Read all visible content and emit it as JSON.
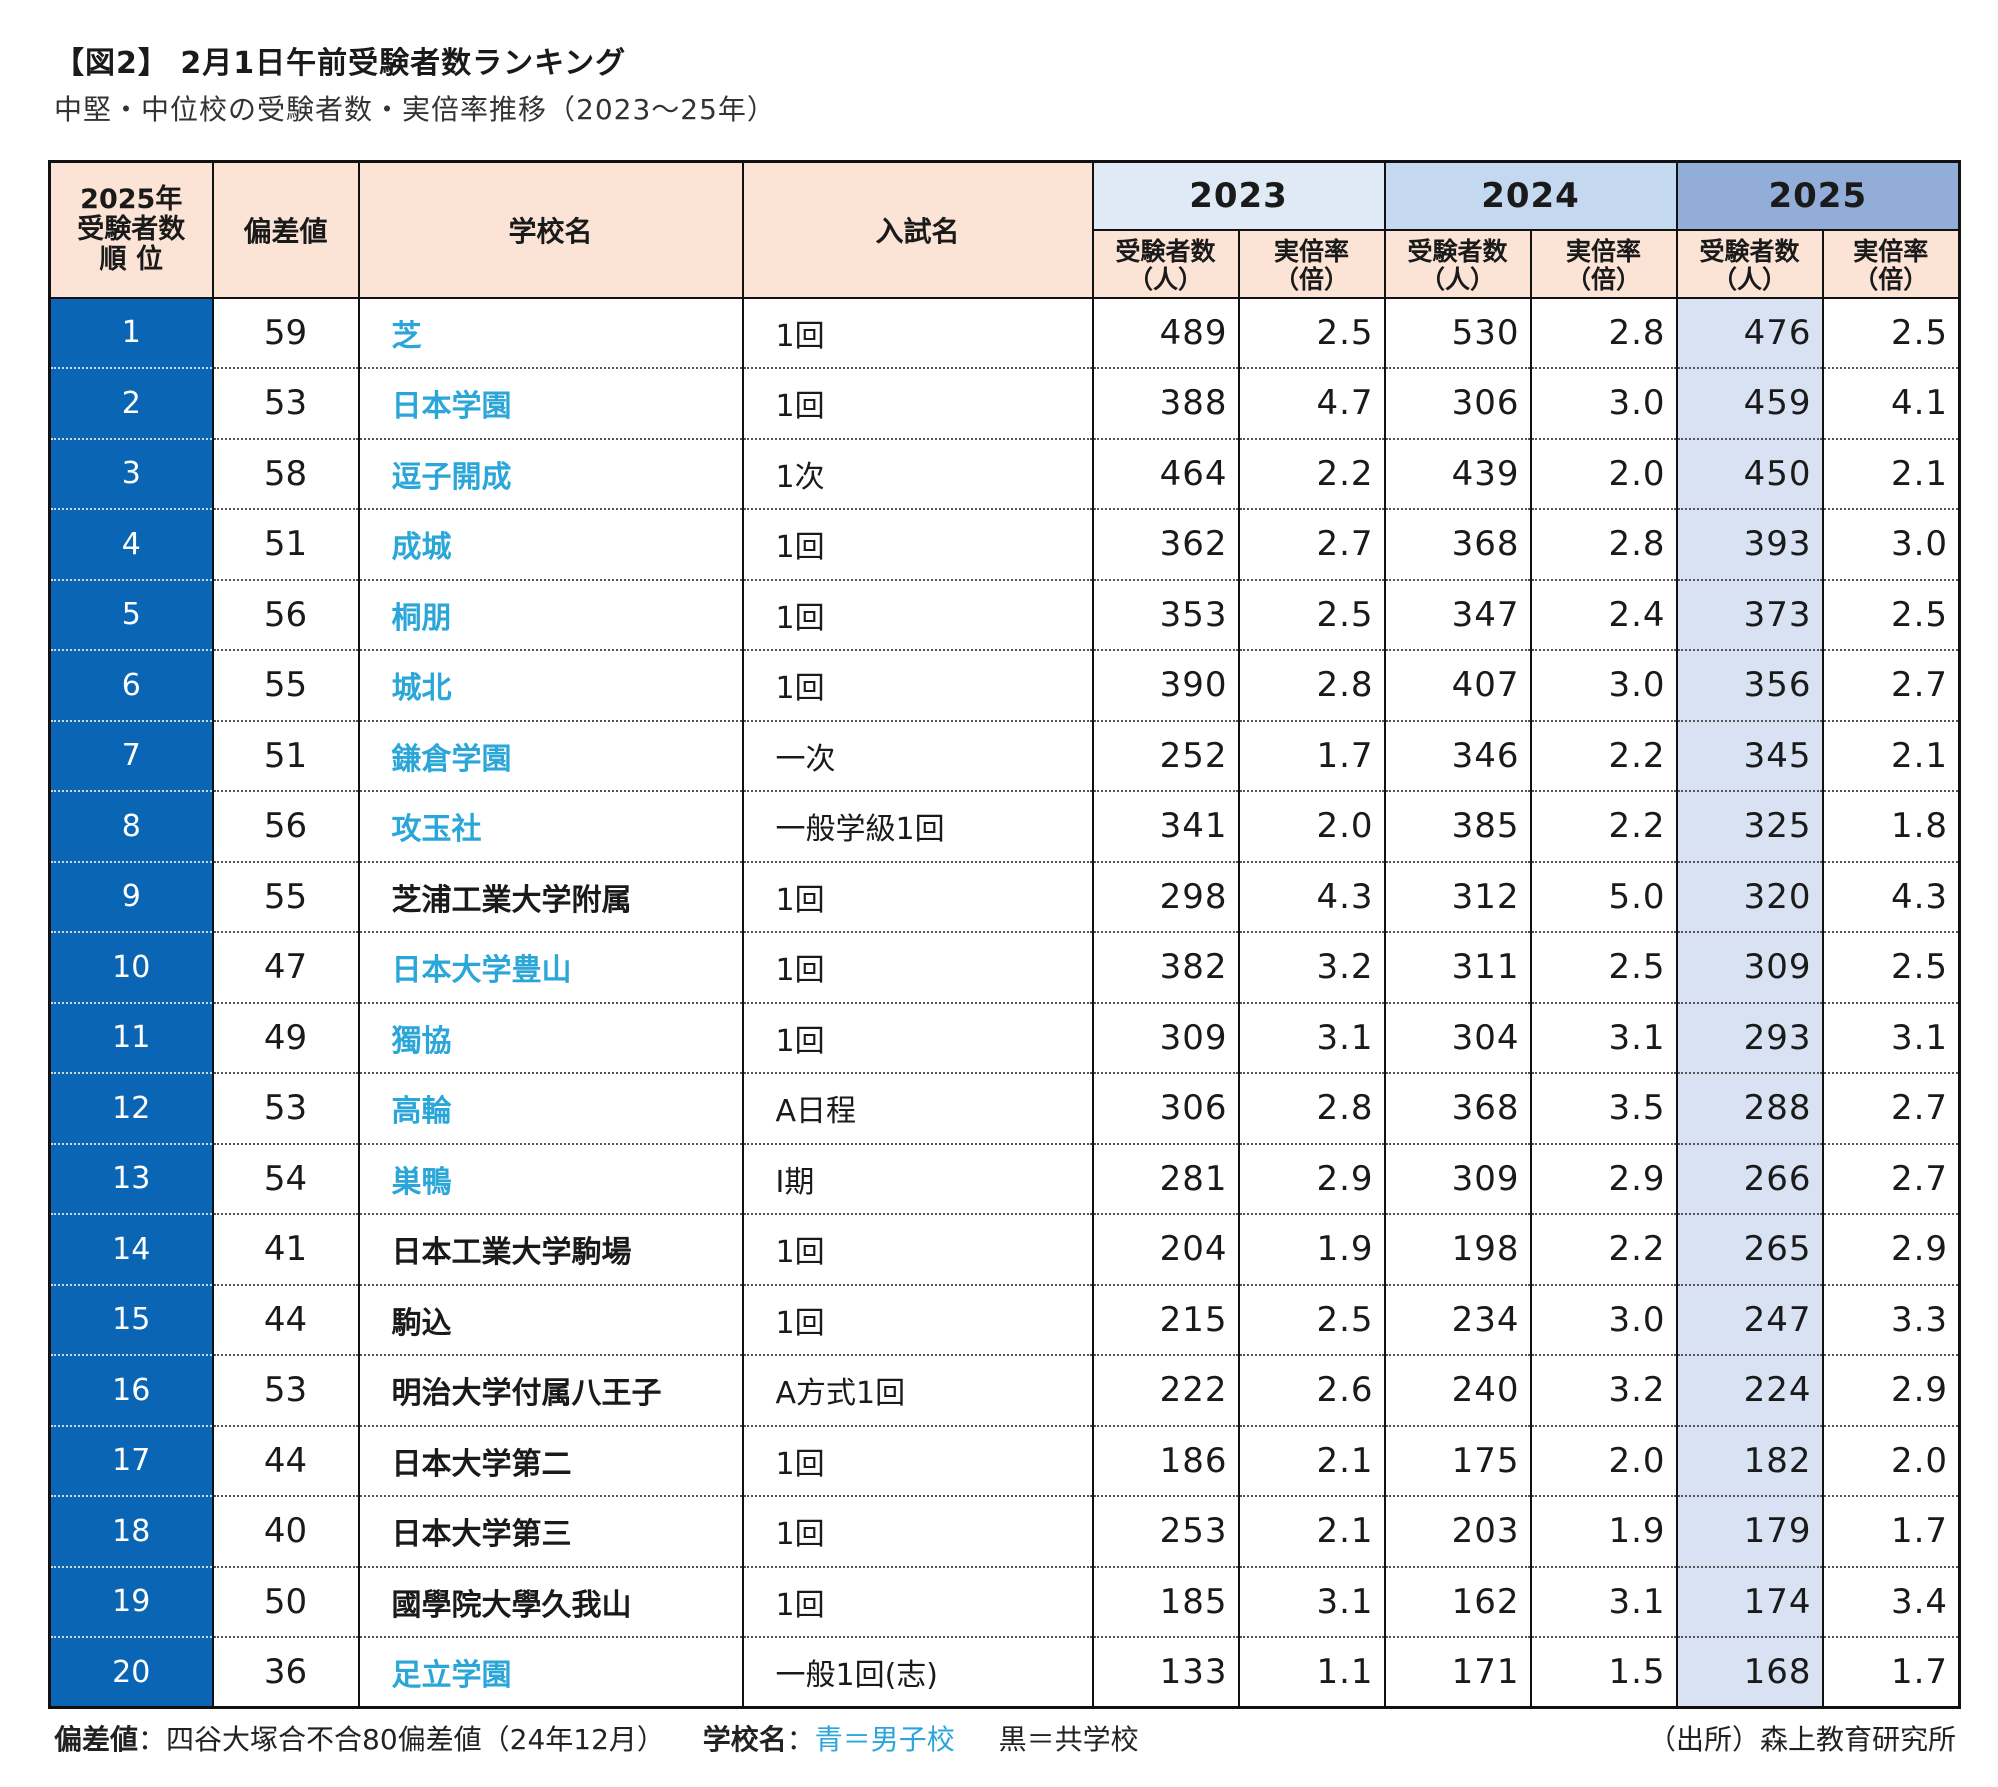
{
  "title": "【図2】 2月1日午前受験者数ランキング",
  "subtitle": "中堅・中位校の受験者数・実倍率推移（2023〜25年）",
  "header": {
    "rank": [
      "2025年",
      "受験者数",
      "順 位"
    ],
    "deviation": "偏差値",
    "school": "学校名",
    "exam": "入試名",
    "years": [
      "2023",
      "2024",
      "2025"
    ],
    "applicants": [
      "受験者数",
      "（人）"
    ],
    "ratio": [
      "実倍率",
      "（倍）"
    ]
  },
  "rows": [
    {
      "rank": "1",
      "dev": "59",
      "school": "芝",
      "type": "boys",
      "exam": "1回",
      "a23": "489",
      "r23": "2.5",
      "a24": "530",
      "r24": "2.8",
      "a25": "476",
      "r25": "2.5"
    },
    {
      "rank": "2",
      "dev": "53",
      "school": "日本学園",
      "type": "boys",
      "exam": "1回",
      "a23": "388",
      "r23": "4.7",
      "a24": "306",
      "r24": "3.0",
      "a25": "459",
      "r25": "4.1"
    },
    {
      "rank": "3",
      "dev": "58",
      "school": "逗子開成",
      "type": "boys",
      "exam": "1次",
      "a23": "464",
      "r23": "2.2",
      "a24": "439",
      "r24": "2.0",
      "a25": "450",
      "r25": "2.1"
    },
    {
      "rank": "4",
      "dev": "51",
      "school": "成城",
      "type": "boys",
      "exam": "1回",
      "a23": "362",
      "r23": "2.7",
      "a24": "368",
      "r24": "2.8",
      "a25": "393",
      "r25": "3.0"
    },
    {
      "rank": "5",
      "dev": "56",
      "school": "桐朋",
      "type": "boys",
      "exam": "1回",
      "a23": "353",
      "r23": "2.5",
      "a24": "347",
      "r24": "2.4",
      "a25": "373",
      "r25": "2.5"
    },
    {
      "rank": "6",
      "dev": "55",
      "school": "城北",
      "type": "boys",
      "exam": "1回",
      "a23": "390",
      "r23": "2.8",
      "a24": "407",
      "r24": "3.0",
      "a25": "356",
      "r25": "2.7"
    },
    {
      "rank": "7",
      "dev": "51",
      "school": "鎌倉学園",
      "type": "boys",
      "exam": "一次",
      "a23": "252",
      "r23": "1.7",
      "a24": "346",
      "r24": "2.2",
      "a25": "345",
      "r25": "2.1"
    },
    {
      "rank": "8",
      "dev": "56",
      "school": "攻玉社",
      "type": "boys",
      "exam": "一般学級1回",
      "a23": "341",
      "r23": "2.0",
      "a24": "385",
      "r24": "2.2",
      "a25": "325",
      "r25": "1.8"
    },
    {
      "rank": "9",
      "dev": "55",
      "school": "芝浦工業大学附属",
      "type": "coed",
      "exam": "1回",
      "a23": "298",
      "r23": "4.3",
      "a24": "312",
      "r24": "5.0",
      "a25": "320",
      "r25": "4.3"
    },
    {
      "rank": "10",
      "dev": "47",
      "school": "日本大学豊山",
      "type": "boys",
      "exam": "1回",
      "a23": "382",
      "r23": "3.2",
      "a24": "311",
      "r24": "2.5",
      "a25": "309",
      "r25": "2.5"
    },
    {
      "rank": "11",
      "dev": "49",
      "school": "獨協",
      "type": "boys",
      "exam": "1回",
      "a23": "309",
      "r23": "3.1",
      "a24": "304",
      "r24": "3.1",
      "a25": "293",
      "r25": "3.1"
    },
    {
      "rank": "12",
      "dev": "53",
      "school": "高輪",
      "type": "boys",
      "exam": "A日程",
      "a23": "306",
      "r23": "2.8",
      "a24": "368",
      "r24": "3.5",
      "a25": "288",
      "r25": "2.7"
    },
    {
      "rank": "13",
      "dev": "54",
      "school": "巣鴨",
      "type": "boys",
      "exam": "Ⅰ期",
      "a23": "281",
      "r23": "2.9",
      "a24": "309",
      "r24": "2.9",
      "a25": "266",
      "r25": "2.7"
    },
    {
      "rank": "14",
      "dev": "41",
      "school": "日本工業大学駒場",
      "type": "coed",
      "exam": "1回",
      "a23": "204",
      "r23": "1.9",
      "a24": "198",
      "r24": "2.2",
      "a25": "265",
      "r25": "2.9"
    },
    {
      "rank": "15",
      "dev": "44",
      "school": "駒込",
      "type": "coed",
      "exam": "1回",
      "a23": "215",
      "r23": "2.5",
      "a24": "234",
      "r24": "3.0",
      "a25": "247",
      "r25": "3.3"
    },
    {
      "rank": "16",
      "dev": "53",
      "school": "明治大学付属八王子",
      "type": "coed",
      "exam": "A方式1回",
      "a23": "222",
      "r23": "2.6",
      "a24": "240",
      "r24": "3.2",
      "a25": "224",
      "r25": "2.9"
    },
    {
      "rank": "17",
      "dev": "44",
      "school": "日本大学第二",
      "type": "coed",
      "exam": "1回",
      "a23": "186",
      "r23": "2.1",
      "a24": "175",
      "r24": "2.0",
      "a25": "182",
      "r25": "2.0"
    },
    {
      "rank": "18",
      "dev": "40",
      "school": "日本大学第三",
      "type": "coed",
      "exam": "1回",
      "a23": "253",
      "r23": "2.1",
      "a24": "203",
      "r24": "1.9",
      "a25": "179",
      "r25": "1.7"
    },
    {
      "rank": "19",
      "dev": "50",
      "school": "國學院大學久我山",
      "type": "coed",
      "exam": "1回",
      "a23": "185",
      "r23": "3.1",
      "a24": "162",
      "r24": "3.1",
      "a25": "174",
      "r25": "3.4"
    },
    {
      "rank": "20",
      "dev": "36",
      "school": "足立学園",
      "type": "boys",
      "exam": "一般1回(志)",
      "a23": "133",
      "r23": "1.1",
      "a24": "171",
      "r24": "1.5",
      "a25": "168",
      "r25": "1.7"
    }
  ],
  "footer": {
    "dev_label": "偏差値",
    "dev_text": "：四谷大塚合不合80偏差値（24年12月）",
    "school_label": "学校名",
    "school_sep": "：",
    "boys_text": "青＝男子校",
    "coed_text": "黒＝共学校",
    "source": "（出所）森上教育研究所"
  },
  "colors": {
    "boys": "#2aa6d8",
    "rank_bg": "#0a66b5",
    "header_bg": "#fbe4d6",
    "y2023": "#dfeaf6",
    "y2024": "#c4d9ef",
    "y2025": "#93add9",
    "col2025": "#d9e2f2"
  }
}
